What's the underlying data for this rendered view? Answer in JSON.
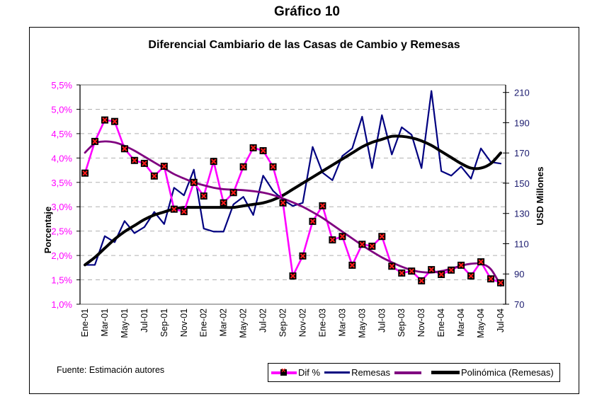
{
  "page": {
    "title": "Gráfico 10",
    "source_note": "Fuente: Estimación autores"
  },
  "chart_data": {
    "type": "line",
    "title": "Diferencial Cambiario de las Casas de Cambio y Remesas",
    "xlabel": "",
    "ylabel_left": "Porcentaje",
    "ylabel_right": "USD Millones",
    "ylim_left": [
      1.0,
      5.5
    ],
    "ylim_right": [
      70,
      215
    ],
    "yticks_left": [
      "1,0%",
      "1,5%",
      "2,0%",
      "2,5%",
      "3,0%",
      "3,5%",
      "4,0%",
      "4,5%",
      "5,0%",
      "5,5%"
    ],
    "yticks_left_values": [
      1.0,
      1.5,
      2.0,
      2.5,
      3.0,
      3.5,
      4.0,
      4.5,
      5.0,
      5.5
    ],
    "yticks_right": [
      "70",
      "90",
      "110",
      "130",
      "150",
      "170",
      "190",
      "210"
    ],
    "yticks_right_values": [
      70,
      90,
      110,
      130,
      150,
      170,
      190,
      210
    ],
    "grid": true,
    "legend_position": "bottom-right",
    "x": [
      "Ene-01",
      "Feb-01",
      "Mar-01",
      "Abr-01",
      "May-01",
      "Jun-01",
      "Jul-01",
      "Ago-01",
      "Sep-01",
      "Oct-01",
      "Nov-01",
      "Dic-01",
      "Ene-02",
      "Feb-02",
      "Mar-02",
      "Abr-02",
      "May-02",
      "Jun-02",
      "Jul-02",
      "Ago-02",
      "Sep-02",
      "Oct-02",
      "Nov-02",
      "Dic-02",
      "Ene-03",
      "Feb-03",
      "Mar-03",
      "Abr-03",
      "May-03",
      "Jun-03",
      "Jul-03",
      "Ago-03",
      "Sep-03",
      "Oct-03",
      "Nov-03",
      "Dic-03",
      "Ene-04",
      "Feb-04",
      "Mar-04",
      "Abr-04",
      "May-04",
      "Jun-04",
      "Jul-04"
    ],
    "xtick_labels": [
      "Ene-01",
      "Mar-01",
      "May-01",
      "Jul-01",
      "Sep-01",
      "Nov-01",
      "Ene-02",
      "Mar-02",
      "May-02",
      "Jul-02",
      "Sep-02",
      "Nov-02",
      "Ene-03",
      "Mar-03",
      "May-03",
      "Jul-03",
      "Sep-03",
      "Nov-03",
      "Ene-04",
      "Mar-04",
      "May-04",
      "Jul-04"
    ],
    "series": [
      {
        "name": "Dif %",
        "axis": "left",
        "color": "#ff00ff",
        "marker": "square-x",
        "values": [
          3.69,
          4.34,
          4.78,
          4.75,
          4.19,
          3.95,
          3.89,
          3.63,
          3.83,
          2.95,
          2.9,
          3.5,
          3.22,
          3.93,
          3.08,
          3.29,
          3.82,
          4.21,
          4.15,
          3.82,
          3.08,
          1.58,
          1.99,
          2.7,
          3.02,
          2.32,
          2.39,
          1.8,
          2.23,
          2.19,
          2.39,
          1.78,
          1.64,
          1.68,
          1.48,
          1.71,
          1.61,
          1.7,
          1.8,
          1.58,
          1.87,
          1.52,
          1.44
        ]
      },
      {
        "name": "Remesas",
        "axis": "right",
        "color": "#000080",
        "values": [
          96,
          96,
          115,
          111,
          125,
          117,
          121,
          131,
          123,
          147,
          142,
          159,
          120,
          118,
          118,
          136,
          141,
          129,
          155,
          145,
          139,
          135,
          137,
          174,
          157,
          152,
          168,
          173,
          194,
          160,
          195,
          169,
          187,
          182,
          160,
          211,
          158,
          155,
          161,
          153,
          173,
          164,
          163
        ]
      },
      {
        "name": "",
        "axis": "left",
        "color": "#800080",
        "trend": "polynomial of Dif %",
        "values": [
          4.11,
          4.3,
          4.34,
          4.32,
          4.25,
          4.15,
          4.03,
          3.91,
          3.79,
          3.67,
          3.58,
          3.5,
          3.44,
          3.39,
          3.36,
          3.35,
          3.34,
          3.32,
          3.29,
          3.24,
          3.17,
          3.09,
          3.0,
          2.89,
          2.77,
          2.63,
          2.49,
          2.35,
          2.21,
          2.08,
          1.96,
          1.86,
          1.77,
          1.7,
          1.66,
          1.65,
          1.68,
          1.73,
          1.79,
          1.83,
          1.83,
          1.72,
          1.38
        ]
      },
      {
        "name": "Polinómica (Remesas)",
        "axis": "right",
        "color": "#000000",
        "trend": "polynomial of Remesas",
        "values": [
          96,
          101,
          107,
          113,
          118,
          122,
          126,
          129,
          131,
          133,
          134,
          134,
          134,
          134,
          134,
          134,
          135,
          136,
          137,
          139,
          142,
          146,
          150,
          154,
          158,
          162,
          166,
          170,
          174,
          177,
          179,
          181,
          181,
          180,
          178,
          175,
          171,
          167,
          163,
          160,
          160,
          163,
          170
        ]
      }
    ]
  },
  "legend": {
    "items": [
      {
        "label": "Dif %",
        "color": "#ff00ff",
        "marker": true
      },
      {
        "label": "Remesas",
        "color": "#000080",
        "marker": false
      },
      {
        "label": "",
        "color": "#800080",
        "marker": false
      },
      {
        "label": "Polinómica (Remesas)",
        "color": "#000000",
        "marker": false
      }
    ]
  }
}
